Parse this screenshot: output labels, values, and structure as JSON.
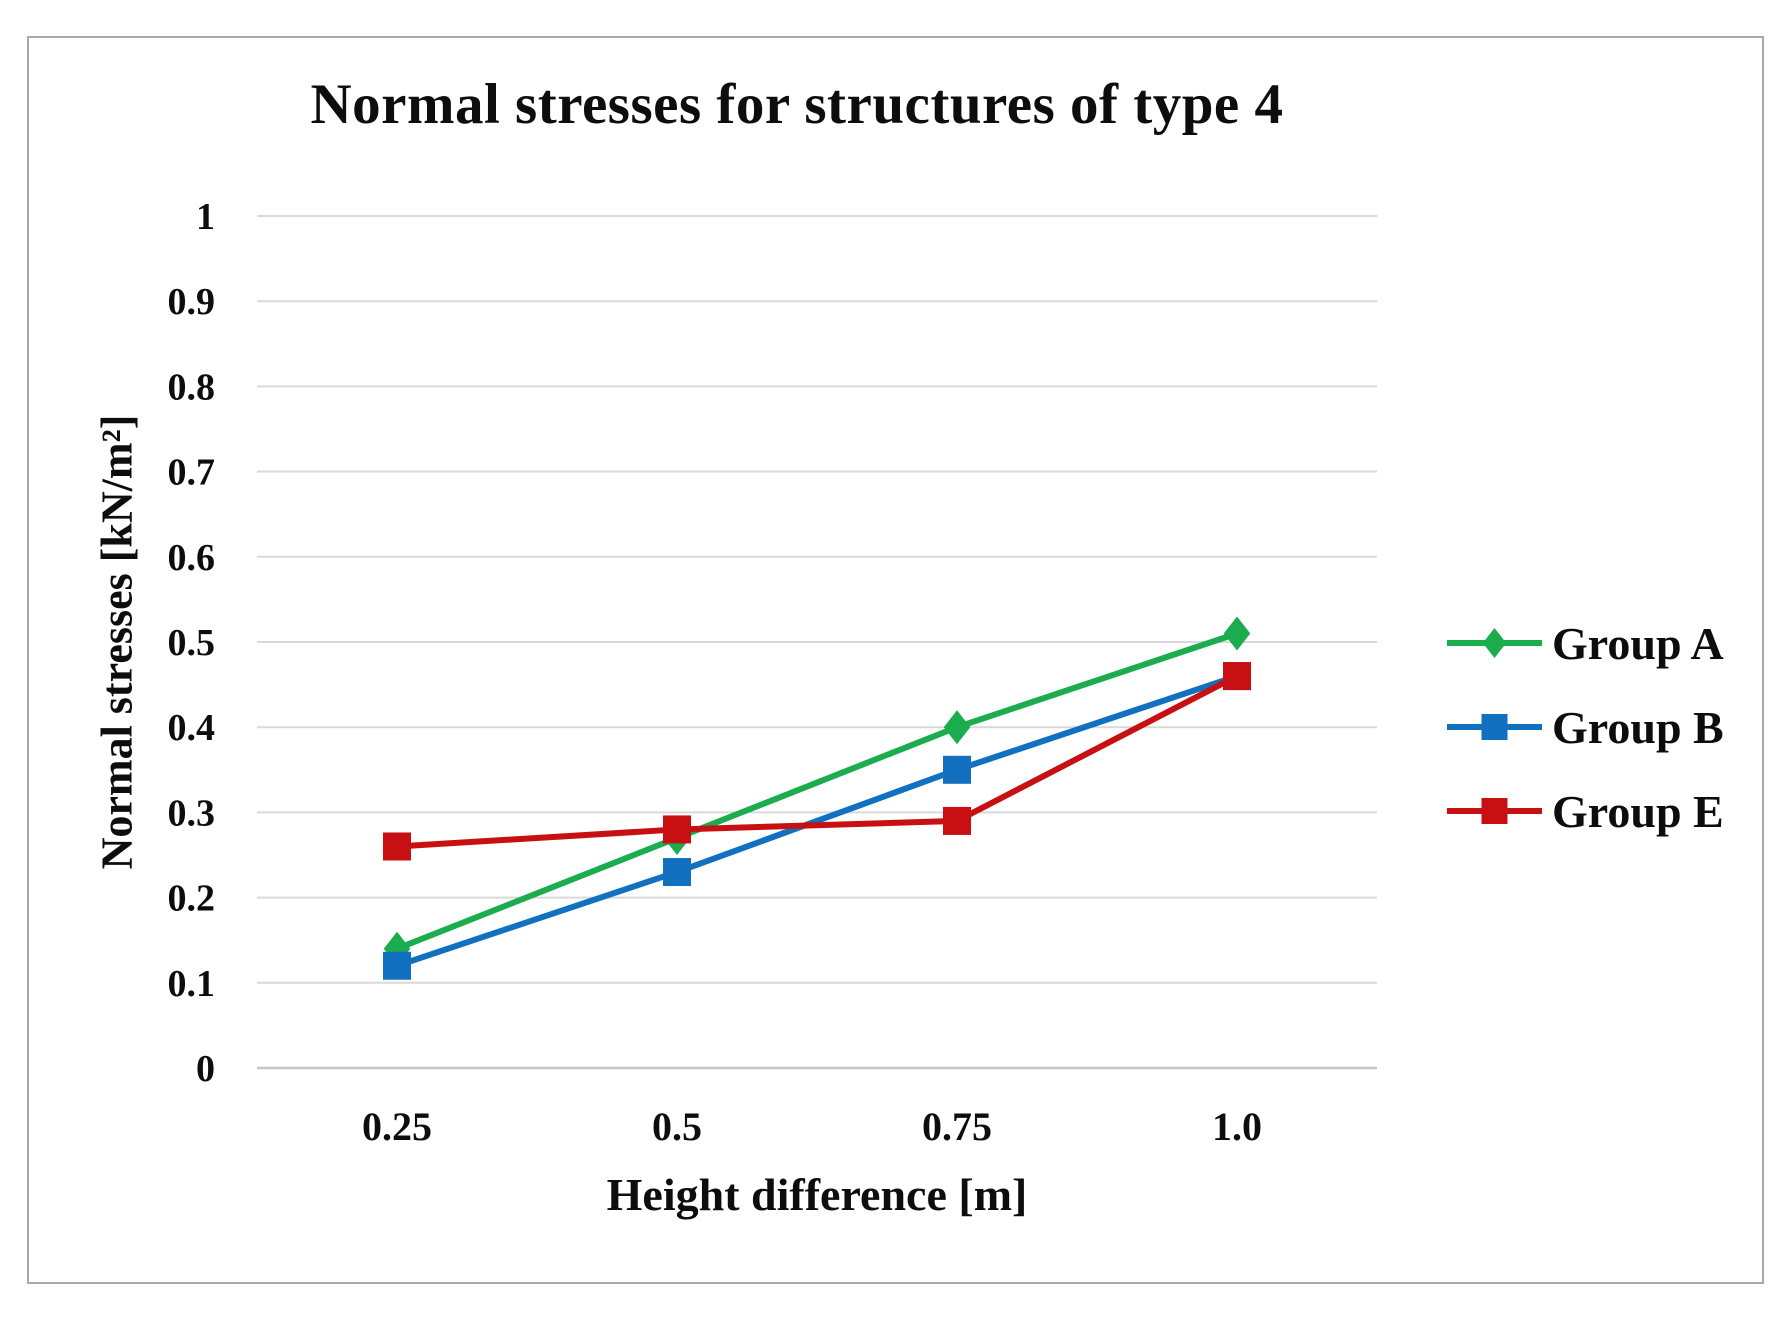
{
  "chart_data": {
    "type": "line",
    "title": "Normal stresses for structures of type 4",
    "xlabel": "Height difference [m]",
    "ylabel": "Normal stresses [kN/m²]",
    "categories": [
      "0.25",
      "0.5",
      "0.75",
      "1.0"
    ],
    "series": [
      {
        "name": "Group A",
        "color": "#1bac4e",
        "marker": "diamond",
        "values": [
          0.14,
          0.27,
          0.4,
          0.51
        ]
      },
      {
        "name": "Group B",
        "color": "#1170c0",
        "marker": "square",
        "values": [
          0.12,
          0.23,
          0.35,
          0.46
        ]
      },
      {
        "name": "Group E",
        "color": "#c81013",
        "marker": "square",
        "values": [
          0.26,
          0.28,
          0.29,
          0.46
        ]
      }
    ],
    "ylim": [
      0,
      1
    ],
    "ytick_step": 0.1,
    "ytick_labels": [
      "0",
      "0.1",
      "0.2",
      "0.3",
      "0.4",
      "0.5",
      "0.6",
      "0.7",
      "0.8",
      "0.9",
      "1"
    ],
    "grid": true,
    "legend_position": "right",
    "colors": {
      "gridline": "#d9d9d9",
      "baseline": "#c6c6c6",
      "frame_border": "#a8a8a8",
      "text": "#0d0d0d",
      "background": "#ffffff"
    }
  }
}
